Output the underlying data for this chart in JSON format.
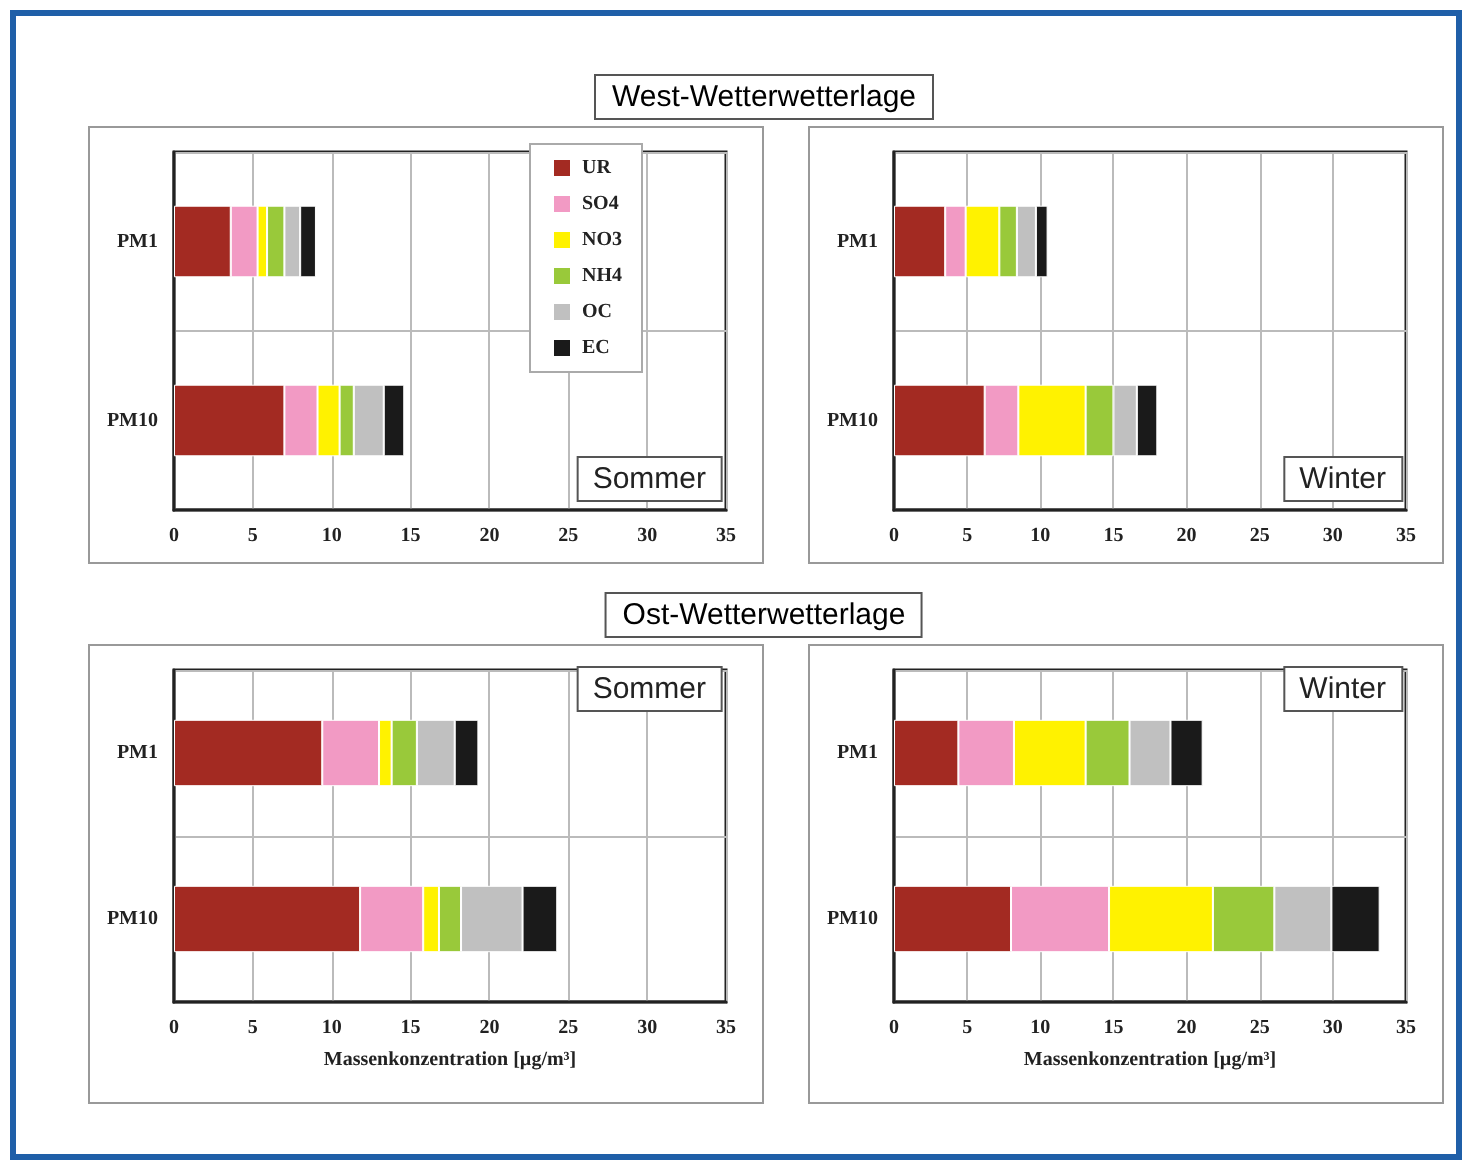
{
  "chart_data": [
    {
      "type": "bar",
      "orientation": "horizontal",
      "stacked": true,
      "title": "Sommer",
      "annotations": [
        "West-Wetterwetterlage"
      ],
      "categories": [
        "PM1",
        "PM10"
      ],
      "xlim": [
        0,
        35
      ],
      "xticks": [
        0,
        5,
        10,
        15,
        20,
        25,
        30,
        35
      ],
      "grid": true,
      "legend": "top right",
      "series": [
        {
          "name": "UR",
          "color": "#a32a22",
          "values": [
            3.6,
            7.0
          ]
        },
        {
          "name": "SO4",
          "color": "#f29ac4",
          "values": [
            1.7,
            2.1
          ]
        },
        {
          "name": "NO3",
          "color": "#fff200",
          "values": [
            0.6,
            1.4
          ]
        },
        {
          "name": "NH4",
          "color": "#99c93a",
          "values": [
            1.1,
            0.9
          ]
        },
        {
          "name": "OC",
          "color": "#c0c0c0",
          "values": [
            1.0,
            1.9
          ]
        },
        {
          "name": "EC",
          "color": "#1a1a1a",
          "values": [
            1.0,
            1.3
          ]
        }
      ]
    },
    {
      "type": "bar",
      "orientation": "horizontal",
      "stacked": true,
      "title": "Winter",
      "categories": [
        "PM1",
        "PM10"
      ],
      "xlim": [
        0,
        35
      ],
      "xticks": [
        0,
        5,
        10,
        15,
        20,
        25,
        30,
        35
      ],
      "grid": true,
      "series": [
        {
          "color": "#a32a22",
          "values": [
            3.5,
            6.2
          ]
        },
        {
          "color": "#f29ac4",
          "values": [
            1.4,
            2.3
          ]
        },
        {
          "color": "#fff200",
          "values": [
            2.3,
            4.6
          ]
        },
        {
          "color": "#99c93a",
          "values": [
            1.2,
            1.9
          ]
        },
        {
          "color": "#c0c0c0",
          "values": [
            1.3,
            1.6
          ]
        },
        {
          "color": "#1a1a1a",
          "values": [
            0.8,
            1.4
          ]
        }
      ]
    },
    {
      "type": "bar",
      "orientation": "horizontal",
      "stacked": true,
      "title": "Sommer",
      "annotations": [
        "Ost-Wetterwetterlage"
      ],
      "xlabel": "Massenkonzentration [µg/m³]",
      "categories": [
        "PM1",
        "PM10"
      ],
      "xlim": [
        0,
        35
      ],
      "xticks": [
        0,
        5,
        10,
        15,
        20,
        25,
        30,
        35
      ],
      "grid": true,
      "series": [
        {
          "color": "#a32a22",
          "values": [
            9.4,
            11.8
          ]
        },
        {
          "color": "#f29ac4",
          "values": [
            3.6,
            4.0
          ]
        },
        {
          "color": "#fff200",
          "values": [
            0.8,
            1.0
          ]
        },
        {
          "color": "#99c93a",
          "values": [
            1.6,
            1.4
          ]
        },
        {
          "color": "#c0c0c0",
          "values": [
            2.4,
            3.9
          ]
        },
        {
          "color": "#1a1a1a",
          "values": [
            1.5,
            2.2
          ]
        }
      ]
    },
    {
      "type": "bar",
      "orientation": "horizontal",
      "stacked": true,
      "title": "Winter",
      "xlabel": "Massenkonzentration [µg/m³]",
      "categories": [
        "PM1",
        "PM10"
      ],
      "xlim": [
        0,
        35
      ],
      "xticks": [
        0,
        5,
        10,
        15,
        20,
        25,
        30,
        35
      ],
      "grid": true,
      "series": [
        {
          "color": "#a32a22",
          "values": [
            4.4,
            8.0
          ]
        },
        {
          "color": "#f29ac4",
          "values": [
            3.8,
            6.7
          ]
        },
        {
          "color": "#fff200",
          "values": [
            4.9,
            7.1
          ]
        },
        {
          "color": "#99c93a",
          "values": [
            3.0,
            4.2
          ]
        },
        {
          "color": "#c0c0c0",
          "values": [
            2.8,
            3.9
          ]
        },
        {
          "color": "#1a1a1a",
          "values": [
            2.2,
            3.3
          ]
        }
      ]
    }
  ]
}
